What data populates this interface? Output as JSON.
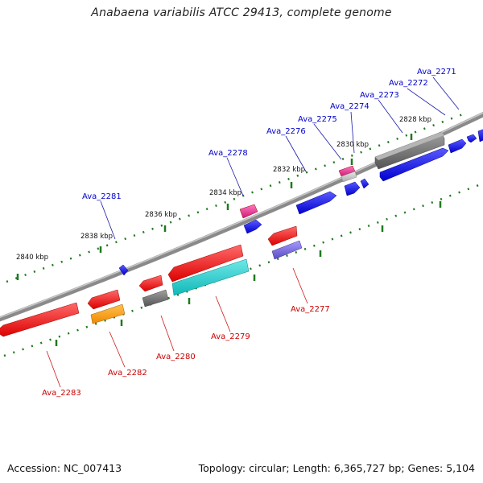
{
  "title": "Anabaena variabilis ATCC 29413, complete genome",
  "footer": {
    "accession": "Accession: NC_007413",
    "summary": "Topology: circular; Length: 6,365,727 bp; Genes: 5,104"
  },
  "ticks": [
    "2828 kbp",
    "2830 kbp",
    "2832 kbp",
    "2834 kbp",
    "2836 kbp",
    "2838 kbp",
    "2840 kbp"
  ],
  "genes_forward": [
    "Ava_2271",
    "Ava_2272",
    "Ava_2273",
    "Ava_2274",
    "Ava_2275",
    "Ava_2276",
    "Ava_2278",
    "Ava_2281"
  ],
  "genes_reverse": [
    "Ava_2277",
    "Ava_2279",
    "Ava_2280",
    "Ava_2282",
    "Ava_2283"
  ],
  "colors": {
    "backbone": "#8a8a8a",
    "tick": "#1e7a1e",
    "forward_gene": "#0000ee",
    "reverse_gene": "#ee0000",
    "grey_feature": "#666666",
    "pink_feature": "#e8208a",
    "cyan_feature": "#12c4c4",
    "purple_feature": "#7466cc",
    "orange_feature": "#ff9900"
  }
}
